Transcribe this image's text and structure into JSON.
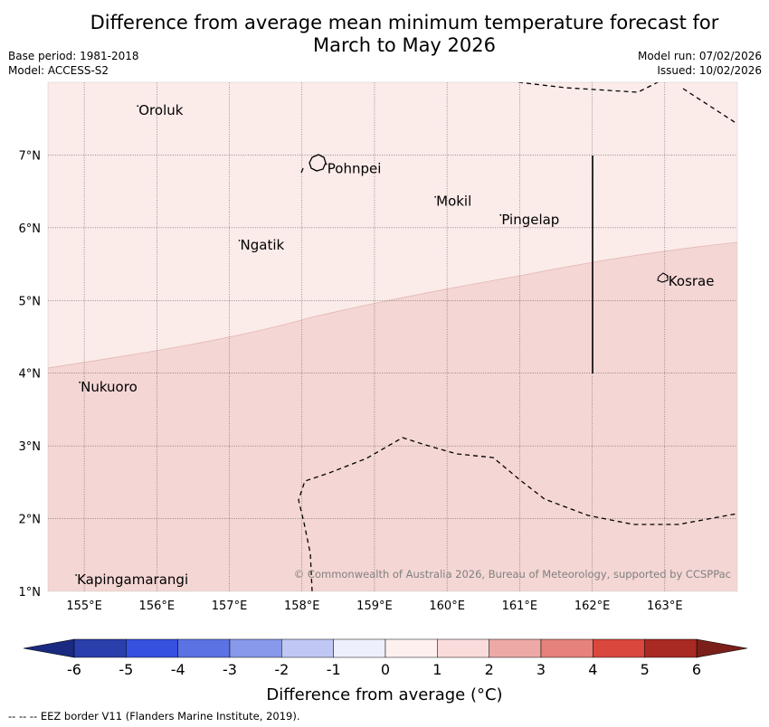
{
  "title_line1": "Difference from average mean minimum temperature forecast for",
  "title_line2": "March to May 2026",
  "base_period": "Base period: 1981-2018",
  "model": "Model: ACCESS-S2",
  "model_run": "Model run: 07/02/2026",
  "issued": "Issued: 10/02/2026",
  "credit": "© Commonwealth of Australia 2026, Bureau of Meteorology, supported by CCSPPac",
  "footer": "-- -- -- EEZ border V11 (Flanders Marine Institute, 2019).",
  "map": {
    "lon_range": [
      154.5,
      164.0
    ],
    "lat_range": [
      1.0,
      8.0
    ],
    "x_ticks": [
      "155°E",
      "156°E",
      "157°E",
      "158°E",
      "159°E",
      "160°E",
      "161°E",
      "162°E",
      "163°E"
    ],
    "y_ticks": [
      "7°N",
      "6°N",
      "5°N",
      "4°N",
      "3°N",
      "2°N",
      "1°N"
    ],
    "regions": [
      {
        "name": "upper-region",
        "range": "0 to 1",
        "color": "#fbebe9"
      },
      {
        "name": "lower-region",
        "range": "1 to 2",
        "color": "#f4d6d4"
      }
    ],
    "places": [
      {
        "name": "Oroluk",
        "lon": 155.75,
        "lat": 7.55
      },
      {
        "name": "Pohnpei",
        "lon": 158.35,
        "lat": 6.75
      },
      {
        "name": "Mokil",
        "lon": 159.85,
        "lat": 6.3
      },
      {
        "name": "Pingelap",
        "lon": 160.75,
        "lat": 6.05
      },
      {
        "name": "Ngatik",
        "lon": 157.15,
        "lat": 5.7
      },
      {
        "name": "Kosrae",
        "lon": 163.05,
        "lat": 5.2
      },
      {
        "name": "Nukuoro",
        "lon": 154.95,
        "lat": 3.75
      },
      {
        "name": "Kapingamarangi",
        "lon": 154.9,
        "lat": 1.1
      }
    ]
  },
  "colorbar": {
    "ticks": [
      "-6",
      "-5",
      "-4",
      "-3",
      "-2",
      "-1",
      "0",
      "1",
      "2",
      "3",
      "4",
      "5",
      "6"
    ],
    "colors": [
      "#2a3fab",
      "#3651df",
      "#5b72e3",
      "#8898ea",
      "#c0c7f4",
      "#eeeffd",
      "#fdf0ef",
      "#f9dcdb",
      "#eca9a5",
      "#e5827b",
      "#d9473d",
      "#a82a22"
    ],
    "extend_low": "#1a2a80",
    "extend_high": "#7a1f1a",
    "label": "Difference from average (°C)"
  }
}
